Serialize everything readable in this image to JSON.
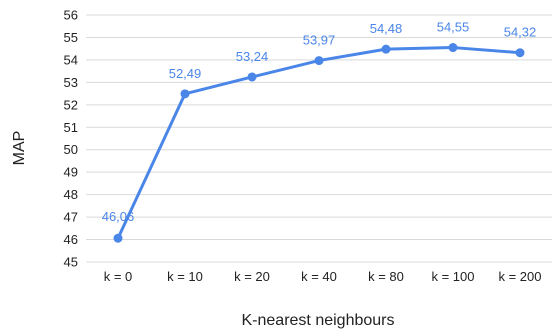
{
  "chart_data": {
    "type": "line",
    "title": "",
    "xlabel": "K-nearest neighbours",
    "ylabel": "MAP",
    "categories": [
      "k = 0",
      "k = 10",
      "k = 20",
      "k = 40",
      "k = 80",
      "k = 100",
      "k = 200"
    ],
    "series": [
      {
        "values": [
          46.06,
          52.49,
          53.24,
          53.97,
          54.48,
          54.55,
          54.32
        ],
        "data_labels": [
          "46,06",
          "52,49",
          "53,24",
          "53,97",
          "54,48",
          "54,55",
          "54,32"
        ],
        "color": "#4a86e8"
      }
    ],
    "ylim": [
      45,
      56
    ],
    "y_ticks": [
      45,
      46,
      47,
      48,
      49,
      50,
      51,
      52,
      53,
      54,
      55,
      56
    ],
    "grid": true,
    "legend": "none"
  }
}
